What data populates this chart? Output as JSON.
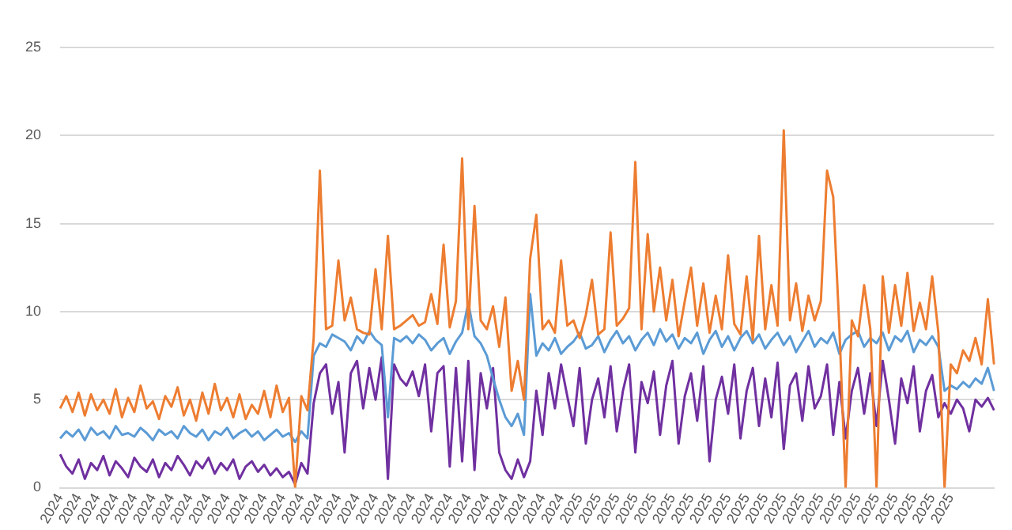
{
  "chart_data": {
    "type": "line",
    "grid": "y",
    "ylim": [
      0,
      25
    ],
    "yticks": [
      0,
      5,
      10,
      15,
      20,
      25
    ],
    "categories": [
      "2024",
      null,
      null,
      "2024",
      null,
      null,
      "2024",
      null,
      null,
      "2024",
      null,
      null,
      "2024",
      null,
      null,
      "2024",
      null,
      null,
      "2024",
      null,
      null,
      "2024",
      null,
      null,
      "2024",
      null,
      null,
      "2024",
      null,
      null,
      "2024",
      null,
      null,
      "2024",
      null,
      null,
      "2024",
      null,
      null,
      "2024",
      null,
      null,
      "2024",
      null,
      null,
      "2024",
      null,
      null,
      "2024",
      null,
      null,
      "2024",
      null,
      null,
      "2024",
      null,
      null,
      "2024",
      null,
      null,
      "2024",
      null,
      null,
      "2024",
      null,
      null,
      "2024",
      null,
      null,
      "2024",
      null,
      null,
      "2024",
      null,
      null,
      "2024",
      null,
      null,
      "2024",
      null,
      null,
      "2024",
      null,
      null,
      "2025",
      null,
      null,
      "2025",
      null,
      null,
      "2025",
      null,
      null,
      "2025",
      null,
      null,
      "2025",
      null,
      null,
      "2025",
      null,
      null,
      "2025",
      null,
      null,
      "2025",
      null,
      null,
      "2025",
      null,
      null,
      "2025",
      null,
      null,
      "2025",
      null,
      null,
      "2025",
      null,
      null,
      "2025",
      null,
      null,
      "2025",
      null,
      null,
      "2025",
      null,
      null,
      "2025",
      null,
      null,
      "2025",
      null,
      null,
      "2025",
      null,
      null,
      "2025",
      null,
      null,
      "2025",
      null,
      null,
      "2025",
      null,
      null,
      null,
      null,
      null,
      null,
      null
    ],
    "series": [
      {
        "color": "#ed7d31",
        "values": [
          4.5,
          5.2,
          4.3,
          5.4,
          4.1,
          5.3,
          4.4,
          5.0,
          4.2,
          5.6,
          4.0,
          5.1,
          4.3,
          5.8,
          4.5,
          4.9,
          3.9,
          5.2,
          4.6,
          5.7,
          4.1,
          5.0,
          3.8,
          5.4,
          4.2,
          5.9,
          4.4,
          5.1,
          4.0,
          5.3,
          3.9,
          4.7,
          4.2,
          5.5,
          4.0,
          5.8,
          4.3,
          5.1,
          0,
          5.2,
          4.4,
          8.5,
          18.0,
          9.0,
          9.2,
          12.9,
          9.5,
          10.8,
          9.0,
          8.8,
          8.7,
          12.4,
          9.0,
          14.3,
          9.0,
          9.2,
          9.5,
          9.8,
          9.2,
          9.4,
          11.0,
          9.3,
          13.8,
          9.1,
          10.6,
          18.7,
          9.0,
          16.0,
          9.5,
          9.0,
          10.3,
          8.0,
          10.8,
          5.5,
          7.2,
          5.0,
          13.0,
          15.5,
          9.0,
          9.5,
          8.8,
          12.9,
          9.2,
          9.5,
          8.5,
          9.8,
          11.8,
          8.7,
          9.0,
          14.5,
          9.2,
          9.6,
          10.2,
          18.5,
          9.0,
          14.4,
          10.0,
          12.5,
          9.5,
          11.8,
          8.6,
          10.6,
          12.5,
          9.2,
          11.6,
          8.8,
          10.9,
          9.0,
          13.2,
          9.3,
          8.7,
          12.0,
          8.4,
          14.3,
          9.0,
          11.5,
          9.2,
          20.3,
          9.5,
          11.6,
          8.9,
          10.9,
          9.5,
          10.6,
          18.0,
          16.5,
          9.0,
          0,
          9.5,
          8.6,
          11.5,
          9.0,
          0,
          12.0,
          8.8,
          11.5,
          9.2,
          12.2,
          8.9,
          10.5,
          9.0,
          12.0,
          8.8,
          0,
          7.0,
          6.5,
          7.8,
          7.2,
          8.5,
          7.0,
          10.7,
          7.0
        ]
      },
      {
        "color": "#5b9bd5",
        "values": [
          2.8,
          3.2,
          2.9,
          3.3,
          2.7,
          3.4,
          3.0,
          3.2,
          2.8,
          3.5,
          3.0,
          3.1,
          2.9,
          3.4,
          3.1,
          2.7,
          3.3,
          3.0,
          3.2,
          2.8,
          3.5,
          3.1,
          2.9,
          3.3,
          2.7,
          3.2,
          3.0,
          3.4,
          2.8,
          3.1,
          3.3,
          2.9,
          3.2,
          2.7,
          3.0,
          3.3,
          2.9,
          3.1,
          2.6,
          3.2,
          2.8,
          7.5,
          8.2,
          8.0,
          8.7,
          8.5,
          8.3,
          7.8,
          8.6,
          8.2,
          8.9,
          8.4,
          8.1,
          4.0,
          8.5,
          8.3,
          8.6,
          8.2,
          8.7,
          8.4,
          7.8,
          8.2,
          8.5,
          7.6,
          8.3,
          8.8,
          10.5,
          8.6,
          8.2,
          7.5,
          6.2,
          5.0,
          4.0,
          3.5,
          4.2,
          3.0,
          11.0,
          7.5,
          8.2,
          7.8,
          8.5,
          7.6,
          8.0,
          8.3,
          8.8,
          7.9,
          8.1,
          8.6,
          7.7,
          8.4,
          8.9,
          8.2,
          8.6,
          7.8,
          8.4,
          8.8,
          8.1,
          9.0,
          8.3,
          8.7,
          7.9,
          8.5,
          8.2,
          8.8,
          7.6,
          8.4,
          8.9,
          8.0,
          8.6,
          7.8,
          8.5,
          8.9,
          8.2,
          8.7,
          7.9,
          8.4,
          8.8,
          8.1,
          8.6,
          7.7,
          8.3,
          8.9,
          8.0,
          8.5,
          8.2,
          8.8,
          7.6,
          8.4,
          8.7,
          8.9,
          8.0,
          8.5,
          8.2,
          8.8,
          7.8,
          8.6,
          8.3,
          8.9,
          7.7,
          8.4,
          8.1,
          8.6,
          8.0,
          5.5,
          5.8,
          5.6,
          6.0,
          5.7,
          6.2,
          5.9,
          6.8,
          5.5
        ]
      },
      {
        "color": "#7030a0",
        "values": [
          1.9,
          1.2,
          0.8,
          1.6,
          0.5,
          1.4,
          1.0,
          1.8,
          0.7,
          1.5,
          1.1,
          0.6,
          1.7,
          1.2,
          0.9,
          1.6,
          0.6,
          1.4,
          1.0,
          1.8,
          1.3,
          0.7,
          1.5,
          1.1,
          1.7,
          0.8,
          1.4,
          1.0,
          1.6,
          0.5,
          1.2,
          1.5,
          0.9,
          1.3,
          0.7,
          1.1,
          0.6,
          0.9,
          0.2,
          1.4,
          0.8,
          4.8,
          6.5,
          7.0,
          4.2,
          6.0,
          2.0,
          6.5,
          7.2,
          4.5,
          6.8,
          5.0,
          7.4,
          0.5,
          7.0,
          6.2,
          5.8,
          6.6,
          5.2,
          7.0,
          3.2,
          6.5,
          6.9,
          1.2,
          6.8,
          1.5,
          7.2,
          1.0,
          6.5,
          4.5,
          6.8,
          2.0,
          1.0,
          0.5,
          1.6,
          0.6,
          1.5,
          5.5,
          3.0,
          6.5,
          4.5,
          7.0,
          5.2,
          3.5,
          6.8,
          2.5,
          5.0,
          6.2,
          4.0,
          6.9,
          3.2,
          5.5,
          7.0,
          2.0,
          6.0,
          4.8,
          6.6,
          3.0,
          5.8,
          7.2,
          2.5,
          5.2,
          6.5,
          3.8,
          6.9,
          1.5,
          5.0,
          6.3,
          4.2,
          7.0,
          2.8,
          5.5,
          6.8,
          3.5,
          6.2,
          4.0,
          7.1,
          2.2,
          5.8,
          6.5,
          3.8,
          6.9,
          4.5,
          5.2,
          7.0,
          3.0,
          6.0,
          2.8,
          5.5,
          6.8,
          4.2,
          6.5,
          3.5,
          7.2,
          5.0,
          2.5,
          6.2,
          4.8,
          6.9,
          3.2,
          5.5,
          6.4,
          4.0,
          4.8,
          4.2,
          5.0,
          4.5,
          3.2,
          5.0,
          4.6,
          5.1,
          4.4
        ]
      }
    ]
  }
}
